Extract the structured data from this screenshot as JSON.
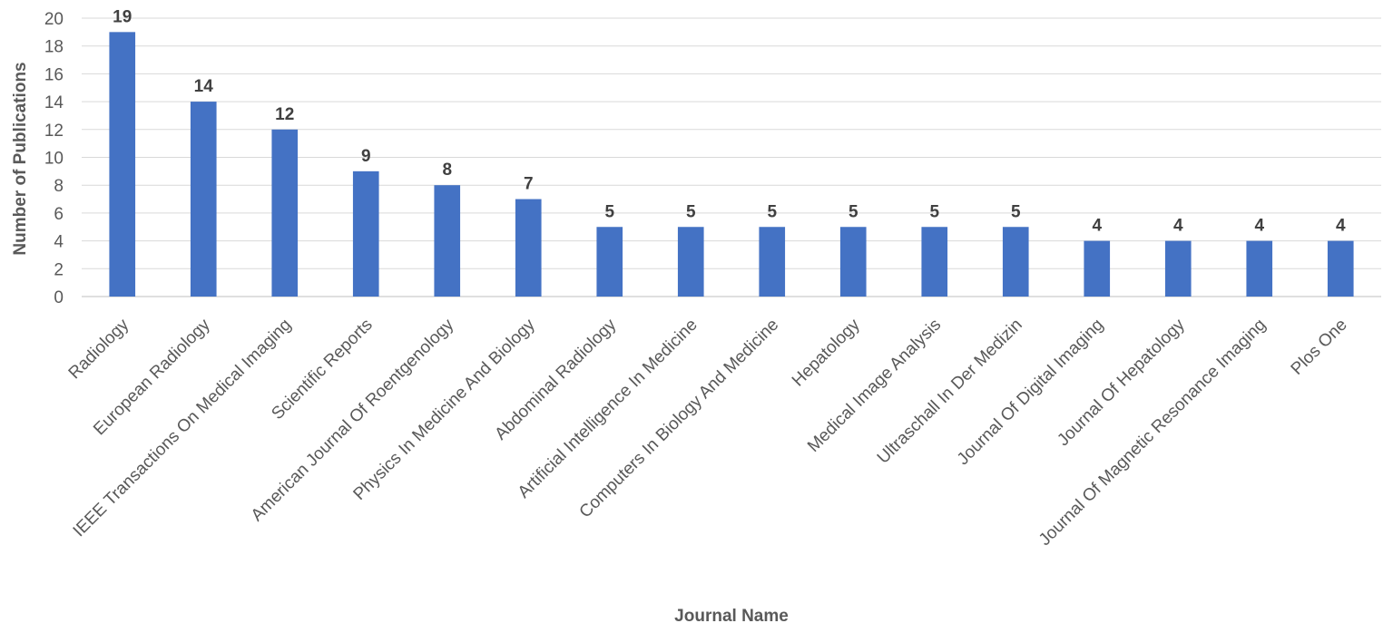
{
  "chart_data": {
    "type": "bar",
    "title": "",
    "xlabel": "Journal Name",
    "ylabel": "Number of Publications",
    "ylim": [
      0,
      20
    ],
    "ytick_step": 2,
    "grid": true,
    "bar_color": "#4472C4",
    "categories": [
      "Radiology",
      "European Radiology",
      "IEEE Transactions On Medical Imaging",
      "Scientific Reports",
      "American Journal Of Roentgenology",
      "Physics In Medicine And Biology",
      "Abdominal Radiology",
      "Artificial Intelligence In Medicine",
      "Computers In Biology And Medicine",
      "Hepatology",
      "Medical Image Analysis",
      "Ultraschall In Der Medizin",
      "Journal Of Digital Imaging",
      "Journal Of Hepatology",
      "Journal Of Magnetic Resonance Imaging",
      "Plos One"
    ],
    "values": [
      19,
      14,
      12,
      9,
      8,
      7,
      5,
      5,
      5,
      5,
      5,
      5,
      4,
      4,
      4,
      4
    ]
  }
}
